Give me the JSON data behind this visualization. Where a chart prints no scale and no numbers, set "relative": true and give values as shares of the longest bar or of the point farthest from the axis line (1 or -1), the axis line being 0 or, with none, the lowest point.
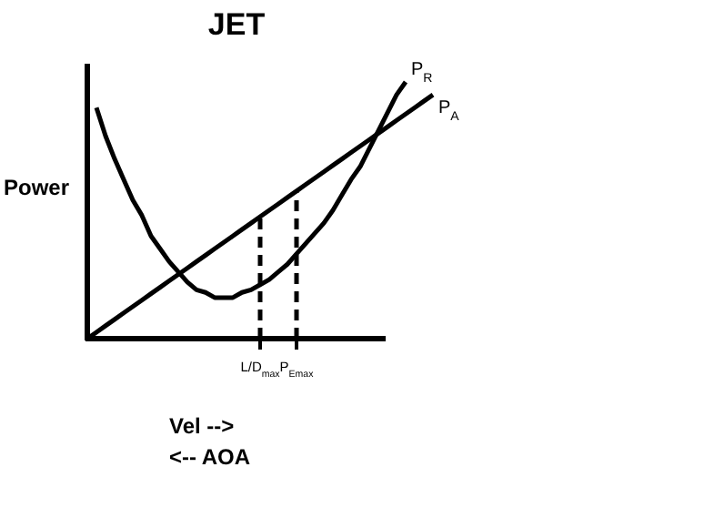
{
  "chart_data": {
    "type": "line",
    "title": "JET",
    "ylabel": "Power",
    "xlabel": "Vel -->",
    "annotations": [
      "<-- AOA"
    ],
    "relative": true,
    "tick_labels": "x",
    "marker": "none",
    "categories": [
      null,
      null,
      null,
      null,
      null,
      null,
      null,
      null,
      null,
      null,
      null,
      null,
      null,
      null,
      null,
      null,
      null,
      null,
      null,
      "L/D$_{max}$",
      null,
      null,
      null,
      "P$_{Emax}$",
      null,
      null,
      null,
      null,
      null,
      null,
      null,
      null,
      null,
      null,
      null,
      null,
      null,
      null,
      null
    ],
    "series": [
      {
        "name": "P$_{R}$",
        "color": "#000000",
        "values": [
          null,
          0.9,
          0.79,
          0.7,
          0.62,
          0.54,
          0.48,
          0.4,
          0.35,
          0.3,
          0.26,
          0.22,
          0.19,
          0.18,
          0.16,
          0.16,
          0.16,
          0.18,
          0.19,
          0.21,
          0.23,
          0.26,
          0.29,
          0.33,
          0.37,
          0.41,
          0.45,
          0.5,
          0.56,
          0.62,
          0.67,
          0.74,
          0.81,
          0.88,
          0.95,
          1,
          null,
          null,
          null
        ]
      },
      {
        "name": "P$_{A}$",
        "color": "#000000",
        "values": [
          0,
          0.025,
          0.05,
          0.075,
          0.1,
          0.125,
          0.15,
          0.175,
          0.2,
          0.225,
          0.25,
          0.275,
          0.3,
          0.325,
          0.35,
          0.375,
          0.4,
          0.425,
          0.45,
          0.475,
          0.5,
          0.525,
          0.55,
          0.575,
          0.6,
          0.625,
          0.65,
          0.675,
          0.7,
          0.725,
          0.75,
          0.775,
          0.8,
          0.825,
          0.85,
          0.875,
          0.9,
          0.925,
          0.95
        ]
      }
    ],
    "ref_lines": [
      {
        "axis": "x",
        "value": "L/D$_{max}$",
        "line_style": "dashed",
        "color": "#000000"
      },
      {
        "axis": "x",
        "value": "P$_{Emax}$",
        "line_style": "dashed",
        "color": "#000000"
      }
    ]
  }
}
